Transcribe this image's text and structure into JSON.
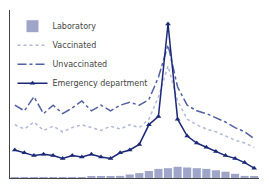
{
  "chart_data": {
    "type": "bar",
    "categories": [
      null,
      null,
      null,
      null,
      null,
      null,
      null,
      null,
      null,
      null,
      null,
      null,
      null,
      null,
      null,
      null,
      null,
      null,
      null,
      null,
      null,
      null,
      null,
      null,
      null,
      null
    ],
    "series": [
      {
        "name": "Laboratory",
        "type": "bar",
        "color": "#8088b8",
        "values": [
          0.5,
          0.5,
          0.5,
          0.5,
          0.5,
          0.5,
          0.5,
          0.5,
          0.8,
          0.8,
          0.8,
          1.5,
          2.5,
          3.5,
          5.0,
          6.5,
          7.0,
          8.0,
          7.5,
          7.0,
          6.5,
          5.5,
          4.5,
          3.0,
          1.5,
          1.2
        ]
      },
      {
        "name": "Vaccinated",
        "type": "line",
        "color": "#b0b8d8",
        "line_style": "dotted",
        "values": [
          38,
          35,
          40,
          34,
          37,
          33,
          36,
          38,
          36,
          34,
          37,
          35,
          38,
          36,
          42,
          58,
          80,
          55,
          42,
          38,
          35,
          33,
          30,
          27,
          25,
          22
        ]
      },
      {
        "name": "Unvaccinated",
        "type": "line",
        "color": "#5060a8",
        "line_style": "dashdot",
        "values": [
          52,
          48,
          58,
          46,
          52,
          46,
          50,
          55,
          48,
          52,
          48,
          52,
          54,
          52,
          56,
          72,
          95,
          65,
          52,
          48,
          46,
          43,
          40,
          36,
          33,
          28
        ]
      },
      {
        "name": "Emergency department",
        "type": "line",
        "color": "#1a2878",
        "line_style": "solid",
        "marker": "triangle",
        "values": [
          20,
          18,
          16,
          17,
          16,
          14,
          16,
          15,
          17,
          15,
          14,
          18,
          20,
          24,
          38,
          44,
          110,
          42,
          30,
          25,
          22,
          19,
          16,
          14,
          11,
          7
        ]
      }
    ],
    "ylim": [
      0,
      120
    ],
    "grid": false,
    "legend": "upper left",
    "tick_labels": false
  }
}
